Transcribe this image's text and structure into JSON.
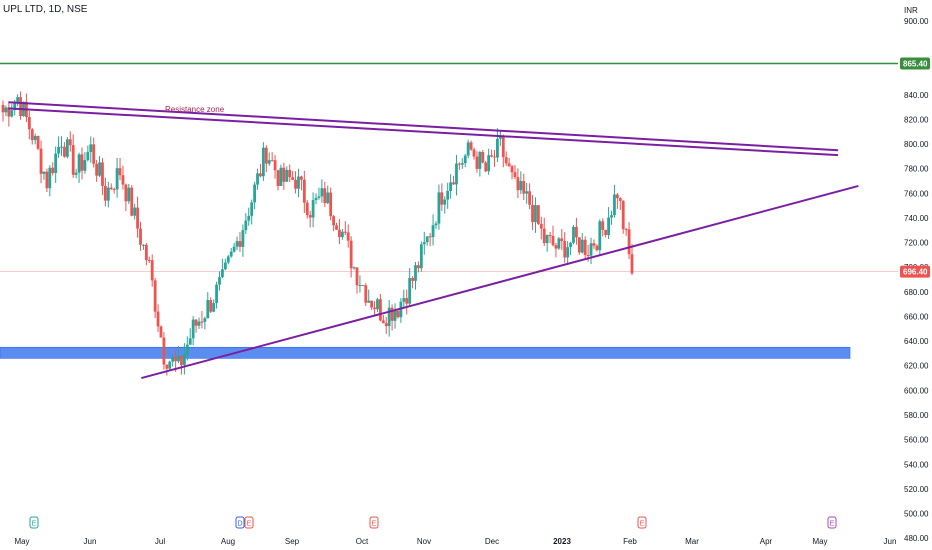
{
  "header": {
    "symbol_label": "UPL LTD, 1D, NSE"
  },
  "colors": {
    "up": "#26a69a",
    "down": "#ef5350",
    "trendline": "#7b1fa2",
    "support_zone": "#5b8def",
    "resistance_line": "#388e3c",
    "current_price_line": "#ef5350",
    "annotation": "#a0205a",
    "axis_text": "#131722",
    "event_earnings": "#ef5350",
    "event_dividend": "#2962ff",
    "event_split": "#26a69a",
    "event_future": "#ab47bc"
  },
  "chart_data": {
    "type": "candlestick",
    "currency_label": "INR",
    "y_ticks": [
      480,
      500,
      520,
      540,
      560,
      580,
      600,
      620,
      640,
      660,
      680,
      700,
      720,
      740,
      760,
      780,
      800,
      820,
      840,
      900
    ],
    "y_range": [
      472,
      917
    ],
    "x_ticks": [
      "May",
      "Jun",
      "Jul",
      "Aug",
      "Sep",
      "Oct",
      "Nov",
      "Dec",
      "2023",
      "Feb",
      "Mar",
      "Apr",
      "May",
      "Jun"
    ],
    "last_price_label": "696.40",
    "last_price": 696.4,
    "resistance_level_label": "865.40",
    "resistance_level": 865.4,
    "annotation_text": "Resistance zone",
    "support_zone": {
      "from": 626,
      "to": 635
    },
    "trendlines": [
      {
        "from": {
          "date": "2022-04-25",
          "price": 834
        },
        "to": {
          "date": "2023-05-09",
          "price": 795
        }
      },
      {
        "from": {
          "date": "2022-04-25",
          "price": 829
        },
        "to": {
          "date": "2023-05-09",
          "price": 791
        }
      },
      {
        "from": {
          "date": "2022-06-23",
          "price": 610
        },
        "to": {
          "date": "2023-05-18",
          "price": 766
        }
      }
    ],
    "events": [
      {
        "month": "May",
        "symbol": "E"
      },
      {
        "month": "Aug",
        "symbol": "D"
      },
      {
        "month": "Aug",
        "symbol": "E"
      },
      {
        "month": "Oct",
        "symbol": "E"
      },
      {
        "month": "Feb",
        "symbol": "E"
      },
      {
        "month": "May",
        "symbol": "E"
      }
    ],
    "closes_weekly": [
      826,
      838,
      808,
      770,
      805,
      778,
      796,
      760,
      778,
      740,
      700,
      630,
      618,
      650,
      668,
      688,
      720,
      755,
      795,
      770,
      772,
      748,
      758,
      735,
      700,
      676,
      662,
      668,
      690,
      722,
      760,
      782,
      795,
      778,
      798,
      764,
      752,
      722,
      715,
      722,
      716,
      730,
      762,
      695
    ]
  }
}
